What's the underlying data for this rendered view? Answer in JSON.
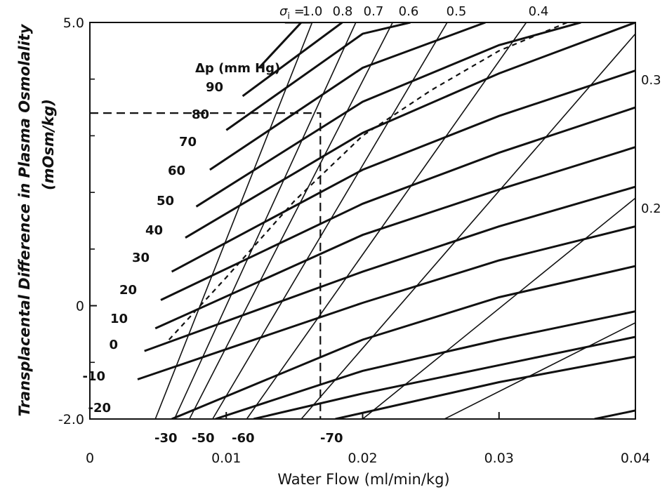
{
  "chart_data": {
    "type": "line",
    "xlabel": "Water Flow (ml/min/kg)",
    "ylabel": "Transplacental Difference in Plasma Osmolality",
    "ylabel2": "(mOsm/kg)",
    "xlim": [
      0,
      0.04
    ],
    "ylim": [
      -2.0,
      5.0
    ],
    "x_ticks": [
      {
        "value": 0,
        "label": "0"
      },
      {
        "value": 0.01,
        "label": "0.01"
      },
      {
        "value": 0.02,
        "label": "0.02"
      },
      {
        "value": 0.03,
        "label": "0.03"
      },
      {
        "value": 0.04,
        "label": "0.04"
      }
    ],
    "y_ticks": [
      {
        "value": 5.0,
        "label": "5.0"
      },
      {
        "value": 0,
        "label": "0"
      },
      {
        "value": -2.0,
        "label": "-2.0"
      }
    ],
    "sigma_prefix": "σ",
    "sigma_sub": "i",
    "sigma_eq": " = ",
    "sigma_labels": [
      "1.0",
      "0.8",
      "0.7",
      "0.6",
      "0.5",
      "0.4",
      "0.3",
      "0.2"
    ],
    "dp_title": "Δp (mm Hg)",
    "dp_labels": [
      "90",
      "80",
      "70",
      "60",
      "50",
      "40",
      "30",
      "20",
      "10",
      "0",
      "-10",
      "-20",
      "-30",
      "-50",
      "-60",
      "-70"
    ],
    "sigma_lines": [
      {
        "sigma": "1.0",
        "points": [
          [
            0.0048,
            -2.0
          ],
          [
            0.0163,
            5.0
          ]
        ]
      },
      {
        "sigma": "0.8",
        "points": [
          [
            0.0062,
            -2.0
          ],
          [
            0.0195,
            5.0
          ]
        ]
      },
      {
        "sigma": "0.7",
        "points": [
          [
            0.0073,
            -2.0
          ],
          [
            0.0222,
            5.0
          ]
        ]
      },
      {
        "sigma": "0.6",
        "points": [
          [
            0.009,
            -2.0
          ],
          [
            0.0262,
            5.0
          ]
        ]
      },
      {
        "sigma": "0.5",
        "points": [
          [
            0.0115,
            -2.0
          ],
          [
            0.032,
            5.0
          ]
        ]
      },
      {
        "sigma": "0.4",
        "points": [
          [
            0.0155,
            -2.0
          ],
          [
            0.04,
            4.8
          ]
        ]
      },
      {
        "sigma": "0.3",
        "points": [
          [
            0.02,
            -2.0
          ],
          [
            0.04,
            1.9
          ]
        ]
      },
      {
        "sigma": "0.2",
        "points": [
          [
            0.026,
            -2.0
          ],
          [
            0.04,
            -0.3
          ]
        ]
      }
    ],
    "dp_lines": [
      {
        "dp": "90",
        "points": [
          [
            0.0143,
            5.0
          ],
          [
            0.0162,
            5.0
          ]
        ]
      },
      {
        "dp": "80",
        "points": [
          [
            0.0124,
            4.2
          ],
          [
            0.0155,
            5.0
          ]
        ]
      },
      {
        "dp": "70",
        "points": [
          [
            0.0112,
            3.7
          ],
          [
            0.0185,
            5.0
          ]
        ]
      },
      {
        "dp": "60",
        "points": [
          [
            0.01,
            3.1
          ],
          [
            0.02,
            4.8
          ],
          [
            0.0235,
            5.0
          ]
        ]
      },
      {
        "dp": "50",
        "points": [
          [
            0.0088,
            2.4
          ],
          [
            0.02,
            4.2
          ],
          [
            0.029,
            5.0
          ]
        ]
      },
      {
        "dp": "40",
        "points": [
          [
            0.0078,
            1.75
          ],
          [
            0.02,
            3.6
          ],
          [
            0.03,
            4.6
          ],
          [
            0.036,
            5.0
          ]
        ]
      },
      {
        "dp": "30",
        "points": [
          [
            0.007,
            1.2
          ],
          [
            0.02,
            3.05
          ],
          [
            0.03,
            4.1
          ],
          [
            0.04,
            5.0
          ]
        ]
      },
      {
        "dp": "20",
        "points": [
          [
            0.006,
            0.6
          ],
          [
            0.02,
            2.4
          ],
          [
            0.03,
            3.35
          ],
          [
            0.04,
            4.15
          ]
        ]
      },
      {
        "dp": "10",
        "points": [
          [
            0.0052,
            0.1
          ],
          [
            0.02,
            1.8
          ],
          [
            0.03,
            2.7
          ],
          [
            0.04,
            3.5
          ]
        ]
      },
      {
        "dp": "0",
        "points": [
          [
            0.0048,
            -0.4
          ],
          [
            0.02,
            1.25
          ],
          [
            0.03,
            2.05
          ],
          [
            0.04,
            2.8
          ]
        ]
      },
      {
        "dp": "-10",
        "points": [
          [
            0.004,
            -0.8
          ],
          [
            0.02,
            0.6
          ],
          [
            0.03,
            1.4
          ],
          [
            0.04,
            2.1
          ]
        ]
      },
      {
        "dp": "-20",
        "points": [
          [
            0.0035,
            -1.3
          ],
          [
            0.02,
            0.05
          ],
          [
            0.03,
            0.8
          ],
          [
            0.04,
            1.4
          ]
        ]
      },
      {
        "dp": "-30",
        "points": [
          [
            0.006,
            -2.0
          ],
          [
            0.02,
            -0.6
          ],
          [
            0.03,
            0.15
          ],
          [
            0.04,
            0.7
          ]
        ]
      },
      {
        "dp": "-50",
        "points": [
          [
            0.0092,
            -2.0
          ],
          [
            0.02,
            -1.15
          ],
          [
            0.03,
            -0.6
          ],
          [
            0.04,
            -0.1
          ]
        ]
      },
      {
        "dp": "-60",
        "points": [
          [
            0.012,
            -2.0
          ],
          [
            0.02,
            -1.55
          ],
          [
            0.03,
            -1.05
          ],
          [
            0.04,
            -0.55
          ]
        ]
      },
      {
        "dp": "-70",
        "points": [
          [
            0.018,
            -2.0
          ],
          [
            0.03,
            -1.35
          ],
          [
            0.04,
            -0.9
          ]
        ]
      },
      {
        "dp": "",
        "points": [
          [
            0.037,
            -2.0
          ],
          [
            0.04,
            -1.85
          ]
        ]
      }
    ],
    "curve_dashed": [
      [
        0.0058,
        -0.6
      ],
      [
        0.01,
        0.5
      ],
      [
        0.015,
        1.85
      ],
      [
        0.02,
        3.0
      ],
      [
        0.025,
        3.8
      ],
      [
        0.03,
        4.5
      ],
      [
        0.035,
        5.0
      ]
    ],
    "reference_point": [
      0.0169,
      3.4
    ]
  }
}
